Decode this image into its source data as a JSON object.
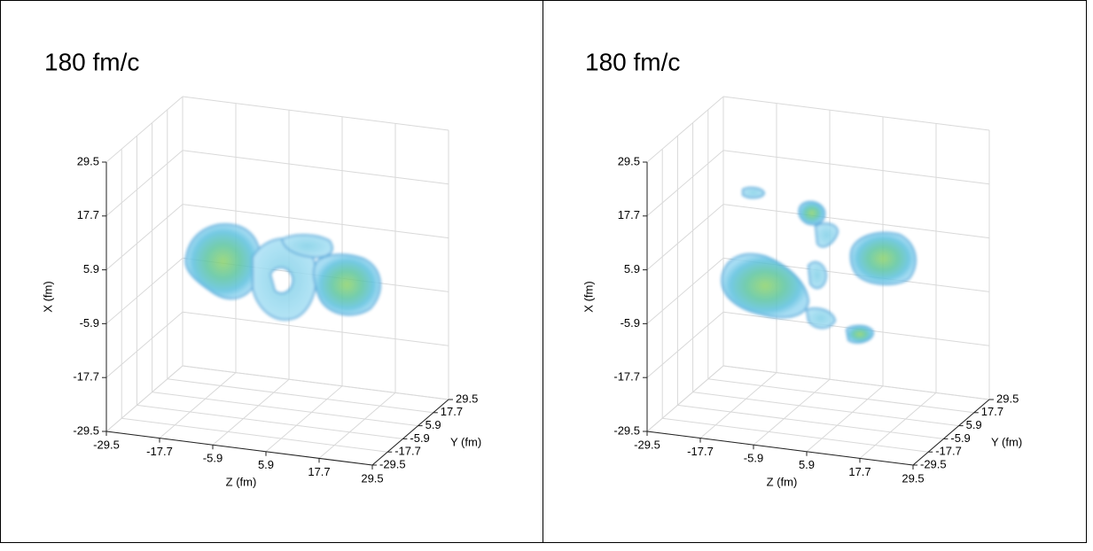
{
  "chart_data": [
    {
      "type": "isosurface",
      "title": "180 fm/c",
      "xlabel": "X (fm)",
      "xlim": [
        -29.5,
        29.5
      ],
      "xticks": [
        -29.5,
        -17.7,
        -5.9,
        5.9,
        17.7,
        29.5
      ],
      "ylabel": "Y (fm)",
      "ylim": [
        -29.5,
        29.5
      ],
      "yticks": [
        -29.5,
        -17.7,
        -5.9,
        5.9,
        17.7,
        29.5
      ],
      "zlabel": "Z (fm)",
      "zlim": [
        -29.5,
        29.5
      ],
      "zticks": [
        -29.5,
        -17.7,
        -5.9,
        5.9,
        17.7,
        29.5
      ]
    },
    {
      "type": "isosurface",
      "title": "180 fm/c",
      "xlabel": "X (fm)",
      "xlim": [
        -29.5,
        29.5
      ],
      "xticks": [
        -29.5,
        -17.7,
        -5.9,
        5.9,
        17.7,
        29.5
      ],
      "ylabel": "Y (fm)",
      "ylim": [
        -29.5,
        29.5
      ],
      "yticks": [
        -29.5,
        -17.7,
        -5.9,
        5.9,
        17.7,
        29.5
      ],
      "zlabel": "Z (fm)",
      "zlim": [
        -29.5,
        29.5
      ],
      "zticks": [
        -29.5,
        -17.7,
        -5.9,
        5.9,
        17.7,
        29.5
      ]
    }
  ]
}
